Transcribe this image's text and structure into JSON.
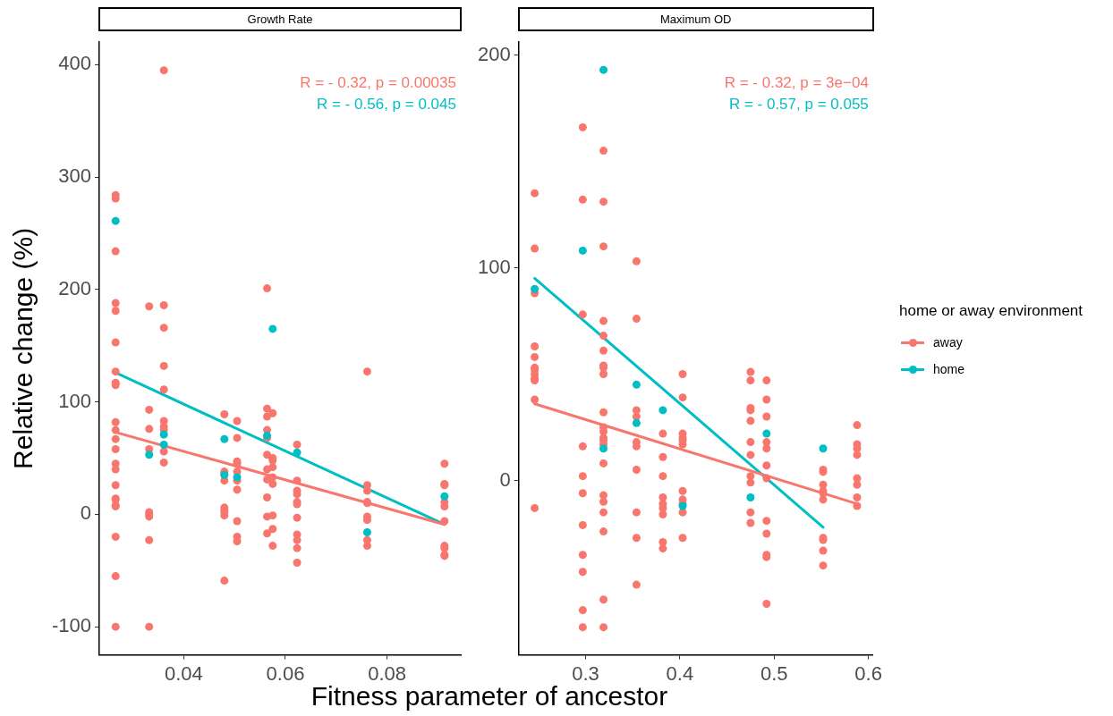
{
  "chart_data": [
    {
      "type": "scatter",
      "title": "Growth Rate",
      "xlabel": "Fitness parameter of ancestor",
      "ylabel": "Relative change (%)",
      "xlim": [
        0.0234,
        0.0945
      ],
      "xticks": [
        0.04,
        0.06,
        0.08
      ],
      "ylim": [
        -125,
        420
      ],
      "yticks": [
        -100,
        0,
        100,
        200,
        300,
        400
      ],
      "grid": false,
      "legend": "right",
      "legend_title": "home or away environment",
      "annotations": [
        "R = - 0.32, p = 0.00035",
        "R = - 0.56, p = 0.045"
      ],
      "series": [
        {
          "name": "away",
          "color": "#f8766d",
          "marker": "circle",
          "x": [
            0.0266,
            0.0266,
            0.0266,
            0.0266,
            0.0266,
            0.0266,
            0.0266,
            0.0266,
            0.0266,
            0.0266,
            0.0266,
            0.0266,
            0.0266,
            0.0266,
            0.0266,
            0.0266,
            0.0266,
            0.0266,
            0.0266,
            0.0266,
            0.0266,
            0.0266,
            0.0266,
            0.0332,
            0.0332,
            0.0332,
            0.0332,
            0.0332,
            0.0332,
            0.0332,
            0.0332,
            0.0332,
            0.0361,
            0.0361,
            0.0361,
            0.0361,
            0.0361,
            0.0361,
            0.0361,
            0.0361,
            0.0361,
            0.0361,
            0.048,
            0.048,
            0.048,
            0.048,
            0.048,
            0.048,
            0.048,
            0.048,
            0.048,
            0.0505,
            0.0505,
            0.0505,
            0.0505,
            0.0505,
            0.0505,
            0.0505,
            0.0505,
            0.0505,
            0.0505,
            0.0564,
            0.0564,
            0.0564,
            0.0564,
            0.0564,
            0.0564,
            0.0564,
            0.0564,
            0.0564,
            0.0564,
            0.0564,
            0.0575,
            0.0575,
            0.0575,
            0.0575,
            0.0575,
            0.0575,
            0.0575,
            0.0575,
            0.0575,
            0.0623,
            0.0623,
            0.0623,
            0.0623,
            0.0623,
            0.0623,
            0.0623,
            0.0623,
            0.0623,
            0.0623,
            0.0623,
            0.0761,
            0.0761,
            0.0761,
            0.0761,
            0.0761,
            0.0761,
            0.0761,
            0.0761,
            0.0761,
            0.0913,
            0.0913,
            0.0913,
            0.0913,
            0.0913,
            0.0913,
            0.0913,
            0.0913,
            0.0913,
            0.0913
          ],
          "values": [
            284,
            281,
            234,
            188,
            181,
            153,
            127,
            117,
            115,
            82,
            75,
            67,
            58,
            45,
            40,
            26,
            14,
            13,
            8,
            7,
            -20,
            -55,
            -100,
            185,
            93,
            76,
            58,
            2,
            0,
            -2,
            -23,
            -100,
            395,
            186,
            166,
            132,
            111,
            83,
            78,
            75,
            56,
            46,
            89,
            38,
            36,
            30,
            6,
            4,
            2,
            -1,
            -59,
            83,
            68,
            47,
            45,
            38,
            30,
            22,
            -6,
            -20,
            -24,
            201,
            94,
            87,
            75,
            68,
            53,
            40,
            31,
            15,
            -2,
            -17,
            90,
            50,
            48,
            42,
            33,
            27,
            -1,
            -13,
            -28,
            62,
            30,
            21,
            18,
            11,
            9,
            -3,
            -18,
            -23,
            -30,
            -43,
            127,
            26,
            21,
            11,
            10,
            -2,
            -5,
            -23,
            -28,
            45,
            27,
            26,
            11,
            7,
            -6,
            -28,
            -30,
            -36,
            -37
          ]
        },
        {
          "name": "home",
          "color": "#00bfc4",
          "marker": "circle",
          "x": [
            0.0266,
            0.0332,
            0.0361,
            0.0361,
            0.048,
            0.048,
            0.0505,
            0.0564,
            0.0575,
            0.0623,
            0.0761,
            0.0913
          ],
          "values": [
            261,
            53,
            71,
            62,
            67,
            35,
            33,
            70,
            165,
            55,
            -16,
            16
          ]
        },
        {
          "type": "line",
          "color": "#f8766d",
          "x": [
            0.0266,
            0.0913
          ],
          "values": [
            73,
            -9
          ]
        },
        {
          "type": "line",
          "color": "#00bfc4",
          "x": [
            0.0266,
            0.0913
          ],
          "values": [
            126,
            -9
          ]
        }
      ]
    },
    {
      "type": "scatter",
      "title": "Maximum OD",
      "xlim": [
        0.229,
        0.605
      ],
      "xticks": [
        0.3,
        0.4,
        0.5,
        0.6
      ],
      "ylim": [
        -82,
        206
      ],
      "yticks": [
        0,
        100,
        200
      ],
      "grid": false,
      "annotations": [
        "R = - 0.32, p = 3e−04",
        "R = - 0.57, p = 0.055"
      ],
      "series": [
        {
          "color": "#f8766d",
          "marker": "circle",
          "x": [
            0.246,
            0.246,
            0.246,
            0.246,
            0.246,
            0.246,
            0.246,
            0.246,
            0.246,
            0.246,
            0.246,
            0.246,
            0.297,
            0.297,
            0.297,
            0.297,
            0.297,
            0.297,
            0.297,
            0.297,
            0.297,
            0.297,
            0.297,
            0.319,
            0.319,
            0.319,
            0.319,
            0.319,
            0.319,
            0.319,
            0.319,
            0.319,
            0.319,
            0.319,
            0.319,
            0.319,
            0.319,
            0.319,
            0.319,
            0.319,
            0.319,
            0.319,
            0.319,
            0.319,
            0.319,
            0.354,
            0.354,
            0.354,
            0.354,
            0.354,
            0.354,
            0.354,
            0.354,
            0.354,
            0.354,
            0.382,
            0.382,
            0.382,
            0.382,
            0.382,
            0.382,
            0.382,
            0.382,
            0.382,
            0.403,
            0.403,
            0.403,
            0.403,
            0.403,
            0.403,
            0.403,
            0.403,
            0.403,
            0.403,
            0.403,
            0.475,
            0.475,
            0.475,
            0.475,
            0.475,
            0.475,
            0.475,
            0.475,
            0.475,
            0.475,
            0.475,
            0.492,
            0.492,
            0.492,
            0.492,
            0.492,
            0.492,
            0.492,
            0.492,
            0.492,
            0.492,
            0.492,
            0.492,
            0.552,
            0.552,
            0.552,
            0.552,
            0.552,
            0.552,
            0.552,
            0.552,
            0.552,
            0.552,
            0.588,
            0.588,
            0.588,
            0.588,
            0.588,
            0.588,
            0.588,
            0.588
          ],
          "values": [
            135,
            109,
            88,
            63,
            58,
            53,
            52,
            50,
            48,
            47,
            38,
            -13,
            166,
            132,
            78,
            16,
            2,
            -6,
            -21,
            -35,
            -43,
            -61,
            -69,
            155,
            131,
            110,
            75,
            68,
            61,
            54,
            53,
            50,
            32,
            25,
            23,
            20,
            19,
            17,
            8,
            -7,
            -10,
            -15,
            -24,
            -56,
            -69,
            103,
            76,
            33,
            30,
            18,
            16,
            5,
            -15,
            -27,
            -49,
            22,
            11,
            2,
            -8,
            -11,
            -13,
            -16,
            -29,
            -32,
            50,
            39,
            22,
            20,
            19,
            17,
            -5,
            -9,
            -11,
            -15,
            -27,
            51,
            47,
            34,
            33,
            28,
            18,
            12,
            2,
            -1,
            -15,
            -20,
            47,
            38,
            30,
            18,
            15,
            7,
            1,
            -19,
            -25,
            -35,
            -36,
            -58,
            5,
            4,
            -2,
            -5,
            -6,
            -9,
            -27,
            -28,
            -33,
            -40,
            26,
            17,
            15,
            12,
            1,
            -2,
            -8,
            -12
          ]
        },
        {
          "color": "#00bfc4",
          "marker": "circle",
          "x": [
            0.246,
            0.297,
            0.319,
            0.319,
            0.354,
            0.354,
            0.382,
            0.403,
            0.475,
            0.492,
            0.552
          ],
          "values": [
            90,
            108,
            193,
            15,
            45,
            27,
            33,
            -12,
            -8,
            22,
            15
          ]
        },
        {
          "type": "line",
          "color": "#f8766d",
          "x": [
            0.246,
            0.588
          ],
          "values": [
            36,
            -11
          ]
        },
        {
          "type": "line",
          "color": "#00bfc4",
          "x": [
            0.246,
            0.552
          ],
          "values": [
            95,
            -22
          ]
        }
      ]
    }
  ]
}
